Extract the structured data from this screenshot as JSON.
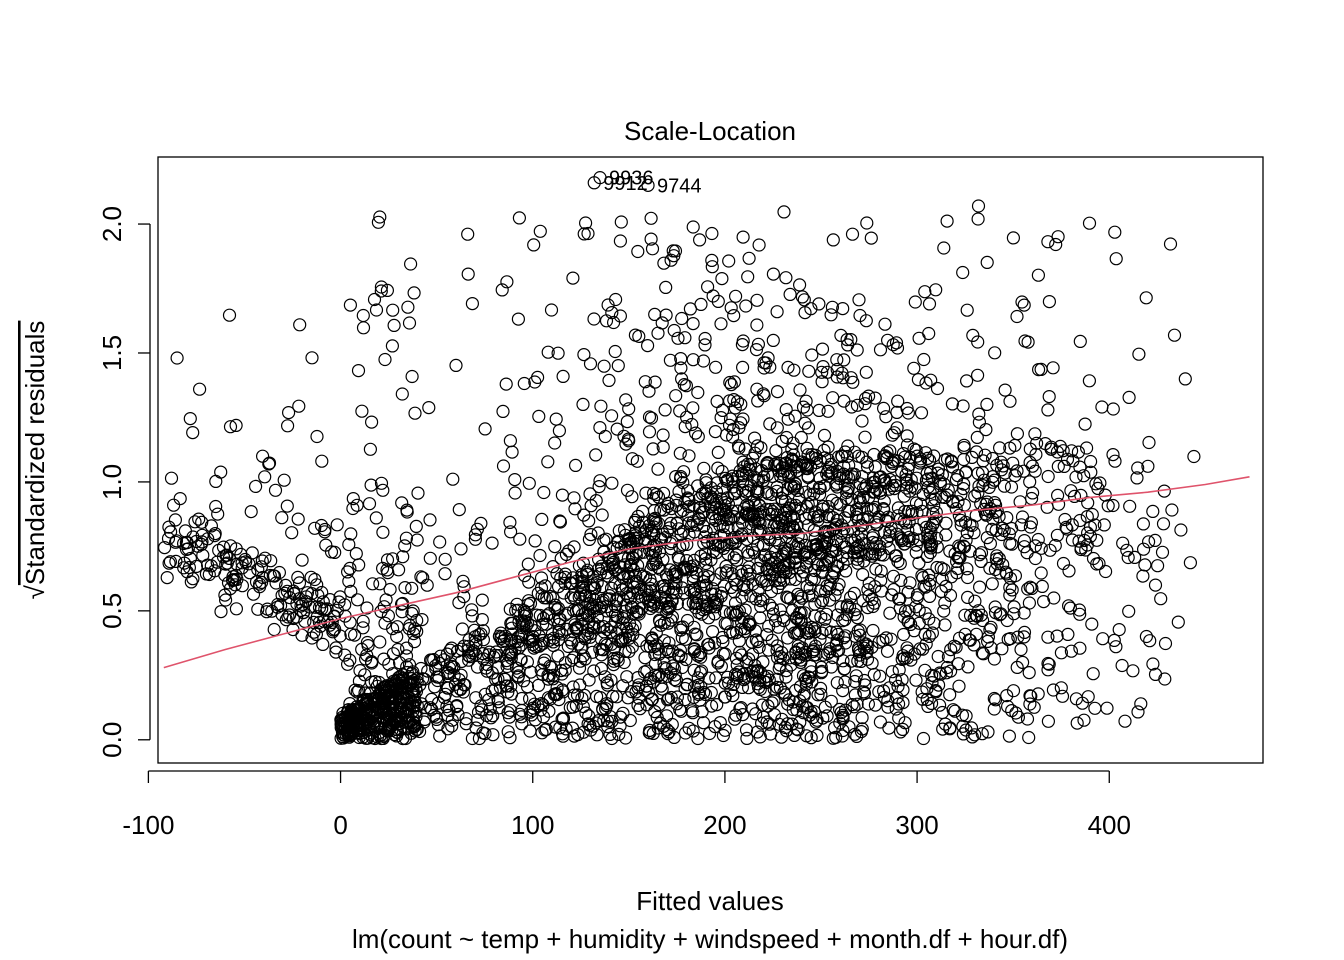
{
  "chart_data": {
    "type": "scatter",
    "title": "Scale-Location",
    "xlabel": "Fitted values",
    "subtitle": "lm(count ~ temp + humidity + windspeed + month.df + hour.df)",
    "ylabel": "Standardized residuals",
    "ylabel_radical": "√",
    "xlim": [
      -95,
      480
    ],
    "ylim": [
      -0.09,
      2.26
    ],
    "x_ticks": [
      -100,
      0,
      100,
      200,
      300,
      400
    ],
    "x_tick_labels": [
      "-100",
      "0",
      "100",
      "200",
      "300",
      "400"
    ],
    "y_ticks": [
      0.0,
      0.5,
      1.0,
      1.5,
      2.0
    ],
    "y_tick_labels": [
      "0.0",
      "0.5",
      "1.0",
      "1.5",
      "2.0"
    ],
    "grid": false,
    "legend": "none",
    "point_color": "#000000",
    "smooth_color": "#DF536B",
    "smoother": {
      "name": "lowess",
      "x": [
        -92,
        -60,
        -30,
        0,
        30,
        60,
        90,
        120,
        150,
        180,
        210,
        240,
        270,
        300,
        330,
        360,
        390,
        420,
        450,
        473
      ],
      "y": [
        0.28,
        0.35,
        0.41,
        0.47,
        0.52,
        0.57,
        0.63,
        0.69,
        0.74,
        0.77,
        0.79,
        0.8,
        0.83,
        0.86,
        0.89,
        0.91,
        0.94,
        0.96,
        0.99,
        1.02
      ]
    },
    "outliers": [
      {
        "label": "9936",
        "x": 135,
        "y": 2.18
      },
      {
        "label": "9912",
        "x": 132,
        "y": 2.16
      },
      {
        "label": "9744",
        "x": 160,
        "y": 2.15
      }
    ],
    "cloud_summary": {
      "n_points": 3600,
      "x_range": [
        -92,
        473
      ],
      "y_range": [
        0.0,
        2.07
      ]
    }
  }
}
